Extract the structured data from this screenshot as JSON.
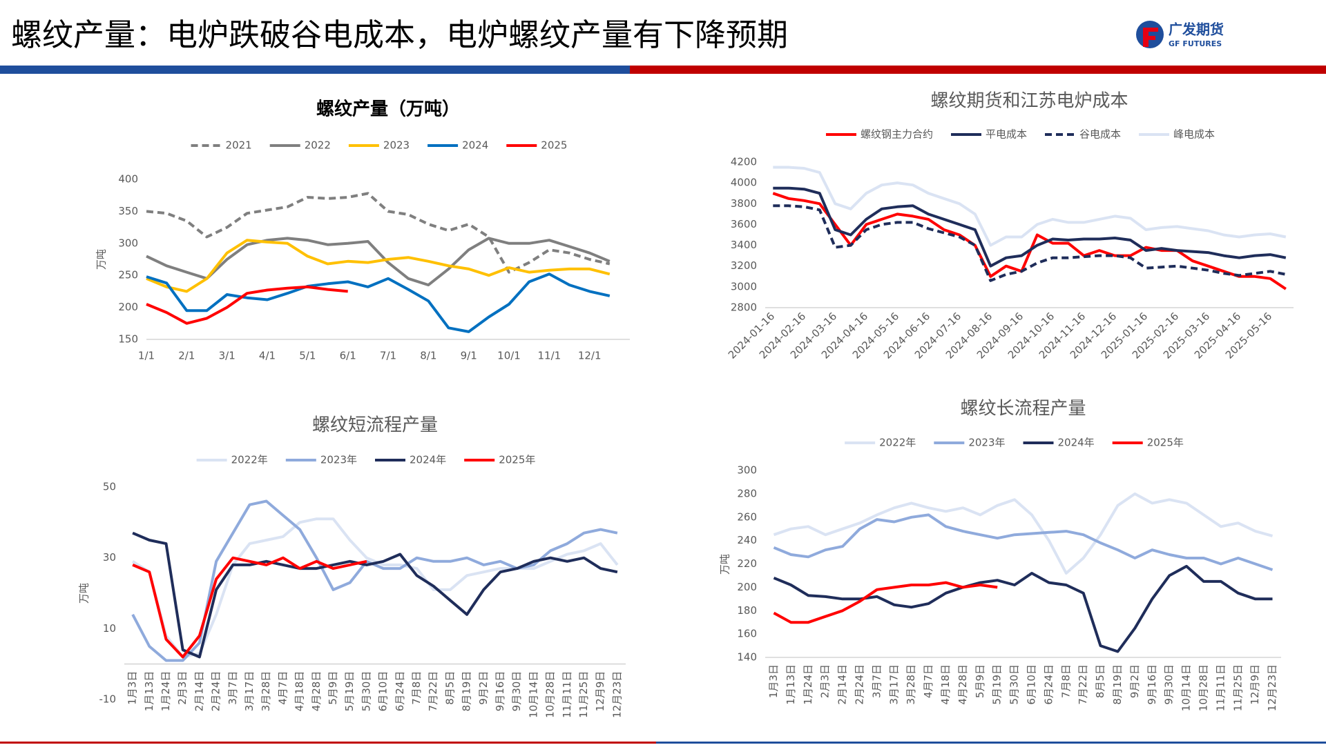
{
  "header": {
    "title": "螺纹产量：电炉跌破谷电成本，电炉螺纹产量有下降预期",
    "logo": "广发期货",
    "logo_sub": "GF FUTURES"
  },
  "chart_data": [
    {
      "type": "line",
      "title": "螺纹产量（万吨）",
      "y_label": "万吨",
      "legend": "top",
      "grid": false,
      "categories": [
        "1/1",
        null,
        "2/1",
        null,
        "3/1",
        null,
        "4/1",
        null,
        "5/1",
        null,
        "6/1",
        null,
        "7/1",
        null,
        "8/1",
        null,
        "9/1",
        null,
        "10/1",
        null,
        "11/1",
        null,
        "12/1",
        null
      ],
      "ylim": [
        150,
        400
      ],
      "yticks": [
        150,
        200,
        250,
        300,
        350,
        400
      ],
      "series": [
        {
          "name": "2021",
          "color": "#7f7f7f",
          "dash": true,
          "values": [
            350,
            347,
            335,
            310,
            325,
            347,
            352,
            357,
            372,
            370,
            372,
            378,
            350,
            345,
            330,
            320,
            330,
            310,
            255,
            270,
            290,
            285,
            275,
            268
          ]
        },
        {
          "name": "2022",
          "color": "#7f7f7f",
          "dash": false,
          "values": [
            280,
            265,
            255,
            245,
            275,
            298,
            305,
            308,
            305,
            298,
            300,
            303,
            270,
            245,
            235,
            260,
            290,
            308,
            300,
            300,
            305,
            295,
            285,
            272
          ]
        },
        {
          "name": "2023",
          "color": "#ffc000",
          "dash": false,
          "values": [
            245,
            232,
            225,
            245,
            285,
            305,
            302,
            300,
            280,
            268,
            272,
            270,
            275,
            278,
            272,
            265,
            260,
            250,
            262,
            255,
            258,
            260,
            260,
            252
          ]
        },
        {
          "name": "2024",
          "color": "#0070c0",
          "dash": false,
          "values": [
            248,
            238,
            195,
            195,
            220,
            215,
            212,
            222,
            233,
            237,
            240,
            232,
            245,
            228,
            210,
            168,
            162,
            185,
            205,
            240,
            252,
            235,
            225,
            218
          ]
        },
        {
          "name": "2025",
          "color": "#ff0000",
          "dash": false,
          "values": [
            205,
            192,
            175,
            183,
            200,
            222,
            227,
            230,
            232,
            228,
            225,
            null,
            null,
            null,
            null,
            null,
            null,
            null,
            null,
            null,
            null,
            null,
            null,
            null
          ]
        }
      ]
    },
    {
      "type": "line",
      "title": "螺纹期货和江苏电炉成本",
      "legend": "top",
      "grid": false,
      "categories": [
        "2024-01-16",
        null,
        "2024-02-16",
        null,
        "2024-03-16",
        null,
        "2024-04-16",
        null,
        "2024-05-16",
        null,
        "2024-06-16",
        null,
        "2024-07-16",
        null,
        "2024-08-16",
        null,
        "2024-09-16",
        null,
        "2024-10-16",
        null,
        "2024-11-16",
        null,
        "2024-12-16",
        null,
        "2025-01-16",
        null,
        "2025-02-16",
        null,
        "2025-03-16",
        null,
        "2025-04-16",
        null,
        "2025-05-16",
        null
      ],
      "ylim": [
        2800,
        4200
      ],
      "yticks": [
        2800,
        3000,
        3200,
        3400,
        3600,
        3800,
        4000,
        4200
      ],
      "series": [
        {
          "name": "螺纹钢主力合约",
          "color": "#ff0000",
          "dash": false,
          "values": [
            3900,
            3850,
            3830,
            3800,
            3600,
            3400,
            3600,
            3650,
            3700,
            3680,
            3650,
            3550,
            3500,
            3400,
            3100,
            3200,
            3150,
            3500,
            3420,
            3420,
            3300,
            3350,
            3300,
            3300,
            3380,
            3350,
            3350,
            3250,
            3200,
            3150,
            3100,
            3100,
            3080,
            2980
          ]
        },
        {
          "name": "平电成本",
          "color": "#1f2d5a",
          "dash": false,
          "values": [
            3950,
            3950,
            3940,
            3900,
            3550,
            3500,
            3650,
            3750,
            3770,
            3780,
            3700,
            3650,
            3600,
            3550,
            3200,
            3280,
            3300,
            3400,
            3460,
            3450,
            3460,
            3460,
            3470,
            3450,
            3350,
            3370,
            3350,
            3340,
            3330,
            3300,
            3280,
            3300,
            3310,
            3280
          ]
        },
        {
          "name": "谷电成本",
          "color": "#1f2d5a",
          "dash": true,
          "values": [
            3780,
            3780,
            3770,
            3740,
            3380,
            3400,
            3550,
            3600,
            3620,
            3620,
            3560,
            3520,
            3480,
            3400,
            3060,
            3120,
            3150,
            3230,
            3280,
            3280,
            3290,
            3300,
            3300,
            3280,
            3180,
            3190,
            3200,
            3180,
            3160,
            3130,
            3110,
            3130,
            3150,
            3120
          ]
        },
        {
          "name": "峰电成本",
          "color": "#dae3f3",
          "dash": false,
          "values": [
            4150,
            4150,
            4140,
            4100,
            3800,
            3750,
            3900,
            3980,
            4000,
            3980,
            3900,
            3850,
            3800,
            3700,
            3400,
            3480,
            3480,
            3600,
            3650,
            3620,
            3620,
            3650,
            3680,
            3660,
            3550,
            3570,
            3580,
            3560,
            3540,
            3500,
            3480,
            3500,
            3510,
            3480
          ]
        }
      ]
    },
    {
      "type": "line",
      "title": "螺纹短流程产量",
      "y_label": "万吨",
      "legend": "top",
      "grid": false,
      "categories": [
        "1月3日",
        "1月13日",
        "1月24日",
        "2月3日",
        "2月14日",
        "2月24日",
        "3月7日",
        "3月17日",
        "3月28日",
        "4月7日",
        "4月18日",
        "4月28日",
        "5月9日",
        "5月19日",
        "5月30日",
        "6月10日",
        "6月24日",
        "7月8日",
        "7月22日",
        "8月5日",
        "8月19日",
        "9月2日",
        "9月16日",
        "9月30日",
        "10月14日",
        "10月28日",
        "11月11日",
        "11月25日",
        "12月9日",
        "12月23日"
      ],
      "ylim": [
        -10,
        50
      ],
      "yticks": [
        -10,
        10,
        30,
        50
      ],
      "series": [
        {
          "name": "2022年",
          "color": "#dae3f3",
          "dash": false,
          "values": [
            29,
            26,
            8,
            2,
            3,
            14,
            28,
            34,
            35,
            36,
            40,
            41,
            41,
            35,
            30,
            28,
            28,
            27,
            21,
            21,
            25,
            26,
            27,
            27,
            27,
            29,
            31,
            32,
            34,
            28
          ]
        },
        {
          "name": "2023年",
          "color": "#8faadc",
          "dash": false,
          "values": [
            14,
            5,
            1,
            1,
            6,
            29,
            37,
            45,
            46,
            42,
            38,
            30,
            21,
            23,
            29,
            27,
            27,
            30,
            29,
            29,
            30,
            28,
            29,
            27,
            28,
            32,
            34,
            37,
            38,
            37
          ]
        },
        {
          "name": "2024年",
          "color": "#1f2d5a",
          "dash": false,
          "values": [
            37,
            35,
            34,
            4,
            2,
            21,
            28,
            28,
            29,
            28,
            27,
            27,
            28,
            29,
            28,
            29,
            31,
            25,
            22,
            18,
            14,
            21,
            26,
            27,
            29,
            30,
            29,
            30,
            27,
            26
          ]
        },
        {
          "name": "2025年",
          "color": "#ff0000",
          "dash": false,
          "values": [
            28,
            26,
            7,
            2,
            8,
            24,
            30,
            29,
            28,
            30,
            27,
            29,
            27,
            28,
            29,
            null,
            null,
            null,
            null,
            null,
            null,
            null,
            null,
            null,
            null,
            null,
            null,
            null,
            null,
            null
          ]
        }
      ]
    },
    {
      "type": "line",
      "title": "螺纹长流程产量",
      "y_label": "万吨",
      "legend": "top",
      "grid": false,
      "categories": [
        "1月3日",
        "1月13日",
        "1月24日",
        "2月3日",
        "2月14日",
        "2月24日",
        "3月7日",
        "3月17日",
        "3月28日",
        "4月7日",
        "4月18日",
        "4月28日",
        "5月9日",
        "5月19日",
        "5月30日",
        "6月10日",
        "6月24日",
        "7月8日",
        "7月22日",
        "8月5日",
        "8月19日",
        "9月2日",
        "9月16日",
        "9月30日",
        "10月14日",
        "10月28日",
        "11月11日",
        "11月25日",
        "12月9日",
        "12月23日"
      ],
      "ylim": [
        140,
        300
      ],
      "yticks": [
        140,
        160,
        180,
        200,
        220,
        240,
        260,
        280,
        300
      ],
      "series": [
        {
          "name": "2022年",
          "color": "#dae3f3",
          "dash": false,
          "values": [
            245,
            250,
            252,
            245,
            250,
            255,
            262,
            268,
            272,
            268,
            265,
            268,
            262,
            270,
            275,
            262,
            240,
            212,
            225,
            245,
            270,
            280,
            272,
            275,
            272,
            262,
            252,
            255,
            248,
            244
          ]
        },
        {
          "name": "2023年",
          "color": "#8faadc",
          "dash": false,
          "values": [
            234,
            228,
            226,
            232,
            235,
            250,
            258,
            256,
            260,
            262,
            252,
            248,
            245,
            242,
            245,
            246,
            247,
            248,
            245,
            238,
            232,
            225,
            232,
            228,
            225,
            225,
            220,
            225,
            220,
            215
          ]
        },
        {
          "name": "2024年",
          "color": "#1f2d5a",
          "dash": false,
          "values": [
            208,
            202,
            193,
            192,
            190,
            190,
            192,
            185,
            183,
            186,
            195,
            200,
            204,
            206,
            202,
            212,
            204,
            202,
            195,
            150,
            145,
            165,
            190,
            210,
            218,
            205,
            205,
            195,
            190,
            190
          ]
        },
        {
          "name": "2025年",
          "color": "#ff0000",
          "dash": false,
          "values": [
            178,
            170,
            170,
            175,
            180,
            188,
            198,
            200,
            202,
            202,
            204,
            200,
            202,
            200,
            null,
            null,
            null,
            null,
            null,
            null,
            null,
            null,
            null,
            null,
            null,
            null,
            null,
            null,
            null,
            null
          ]
        }
      ]
    }
  ]
}
